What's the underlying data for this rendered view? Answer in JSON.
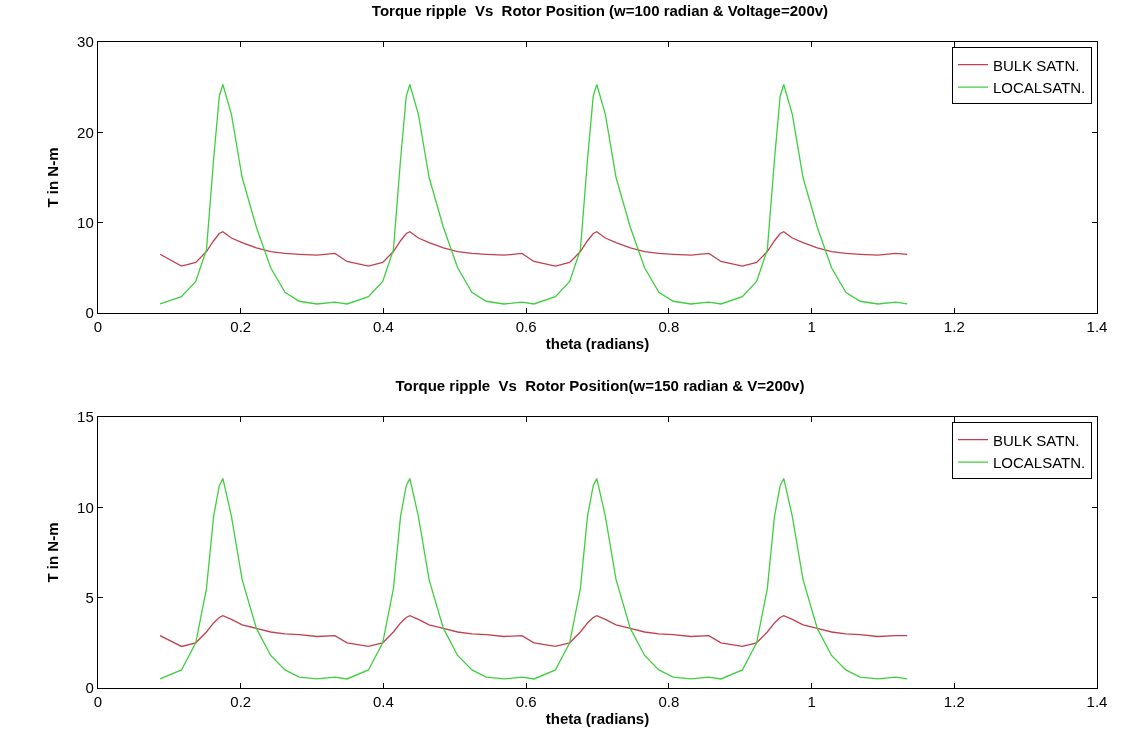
{
  "chart_data": [
    {
      "type": "line",
      "title": "Torque ripple  Vs  Rotor Position (w=100 radian & Voltage=200v)",
      "xlabel": "theta (radians)",
      "ylabel": "T in N-m",
      "x": [
        0.087,
        0.117,
        0.137,
        0.152,
        0.162,
        0.17,
        0.175,
        0.187,
        0.202,
        0.222,
        0.242,
        0.262,
        0.282,
        0.307,
        0.332,
        0.349,
        0.379,
        0.399,
        0.414,
        0.424,
        0.432,
        0.437,
        0.449,
        0.464,
        0.484,
        0.504,
        0.524,
        0.544,
        0.569,
        0.594,
        0.611,
        0.641,
        0.661,
        0.676,
        0.686,
        0.694,
        0.699,
        0.711,
        0.726,
        0.746,
        0.766,
        0.786,
        0.806,
        0.831,
        0.856,
        0.873,
        0.903,
        0.923,
        0.938,
        0.948,
        0.956,
        0.961,
        0.973,
        0.988,
        1.008,
        1.028,
        1.048,
        1.068,
        1.093,
        1.118,
        1.134
      ],
      "series": [
        {
          "name": "BULK SATN.",
          "color": "#c0404f",
          "values": [
            6.5,
            5.2,
            5.6,
            6.8,
            8,
            8.8,
            9,
            8.3,
            7.8,
            7.2,
            6.8,
            6.6,
            6.5,
            6.4,
            6.6,
            5.7,
            5.2,
            5.6,
            6.8,
            8,
            8.8,
            9,
            8.3,
            7.8,
            7.2,
            6.8,
            6.6,
            6.5,
            6.4,
            6.6,
            5.7,
            5.2,
            5.6,
            6.8,
            8,
            8.8,
            9,
            8.3,
            7.8,
            7.2,
            6.8,
            6.6,
            6.5,
            6.4,
            6.6,
            5.7,
            5.2,
            5.6,
            6.8,
            8,
            8.8,
            9,
            8.3,
            7.8,
            7.2,
            6.8,
            6.6,
            6.5,
            6.4,
            6.6,
            6.5
          ]
        },
        {
          "name": "LOCALSATN.",
          "color": "#3fcf3f",
          "values": [
            1,
            1.8,
            3.5,
            7,
            17,
            24,
            25.3,
            22,
            15,
            9.5,
            5,
            2.3,
            1.3,
            1,
            1.2,
            1,
            1.8,
            3.5,
            7,
            17,
            24,
            25.3,
            22,
            15,
            9.5,
            5,
            2.3,
            1.3,
            1,
            1.2,
            1,
            1.8,
            3.5,
            7,
            17,
            24,
            25.3,
            22,
            15,
            9.5,
            5,
            2.3,
            1.3,
            1,
            1.2,
            1,
            1.8,
            3.5,
            7,
            17,
            24,
            25.3,
            22,
            15,
            9.5,
            5,
            2.3,
            1.3,
            1,
            1.2,
            1
          ]
        }
      ],
      "xlim": [
        0,
        1.4
      ],
      "xticks": [
        0,
        0.2,
        0.4,
        0.6,
        0.8,
        1,
        1.2,
        1.4
      ],
      "ylim": [
        0,
        30
      ],
      "yticks": [
        0,
        10,
        20,
        30
      ],
      "grid": false,
      "legend": "top right"
    },
    {
      "type": "line",
      "title": "Torque ripple  Vs  Rotor Position(w=150 radian & V=200v)",
      "xlabel": "theta (radians)",
      "ylabel": "T in N-m",
      "x": [
        0.087,
        0.117,
        0.137,
        0.152,
        0.162,
        0.17,
        0.175,
        0.187,
        0.202,
        0.222,
        0.242,
        0.262,
        0.282,
        0.307,
        0.332,
        0.349,
        0.379,
        0.399,
        0.414,
        0.424,
        0.432,
        0.437,
        0.449,
        0.464,
        0.484,
        0.504,
        0.524,
        0.544,
        0.569,
        0.594,
        0.611,
        0.641,
        0.661,
        0.676,
        0.686,
        0.694,
        0.699,
        0.711,
        0.726,
        0.746,
        0.766,
        0.786,
        0.806,
        0.831,
        0.856,
        0.873,
        0.903,
        0.923,
        0.938,
        0.948,
        0.956,
        0.961,
        0.973,
        0.988,
        1.008,
        1.028,
        1.048,
        1.068,
        1.093,
        1.118,
        1.134
      ],
      "series": [
        {
          "name": "BULK SATN.",
          "color": "#c0404f",
          "values": [
            2.9,
            2.3,
            2.5,
            3.1,
            3.6,
            3.9,
            4,
            3.8,
            3.5,
            3.3,
            3.1,
            3,
            2.95,
            2.85,
            2.9,
            2.5,
            2.3,
            2.5,
            3.1,
            3.6,
            3.9,
            4,
            3.8,
            3.5,
            3.3,
            3.1,
            3,
            2.95,
            2.85,
            2.9,
            2.5,
            2.3,
            2.5,
            3.1,
            3.6,
            3.9,
            4,
            3.8,
            3.5,
            3.3,
            3.1,
            3,
            2.95,
            2.85,
            2.9,
            2.5,
            2.3,
            2.5,
            3.1,
            3.6,
            3.9,
            4,
            3.8,
            3.5,
            3.3,
            3.1,
            3,
            2.95,
            2.85,
            2.9,
            2.9
          ]
        },
        {
          "name": "LOCALSATN.",
          "color": "#3fcf3f",
          "values": [
            0.5,
            1,
            2.5,
            5.5,
            9.5,
            11.2,
            11.6,
            9.5,
            6,
            3.3,
            1.8,
            1,
            0.6,
            0.5,
            0.6,
            0.5,
            1,
            2.5,
            5.5,
            9.5,
            11.2,
            11.6,
            9.5,
            6,
            3.3,
            1.8,
            1,
            0.6,
            0.5,
            0.6,
            0.5,
            1,
            2.5,
            5.5,
            9.5,
            11.2,
            11.6,
            9.5,
            6,
            3.3,
            1.8,
            1,
            0.6,
            0.5,
            0.6,
            0.5,
            1,
            2.5,
            5.5,
            9.5,
            11.2,
            11.6,
            9.5,
            6,
            3.3,
            1.8,
            1,
            0.6,
            0.5,
            0.6,
            0.5
          ]
        }
      ],
      "xlim": [
        0,
        1.4
      ],
      "xticks": [
        0,
        0.2,
        0.4,
        0.6,
        0.8,
        1,
        1.2,
        1.4
      ],
      "ylim": [
        0,
        15
      ],
      "yticks": [
        0,
        5,
        10,
        15
      ],
      "grid": false,
      "legend": "top right"
    }
  ]
}
